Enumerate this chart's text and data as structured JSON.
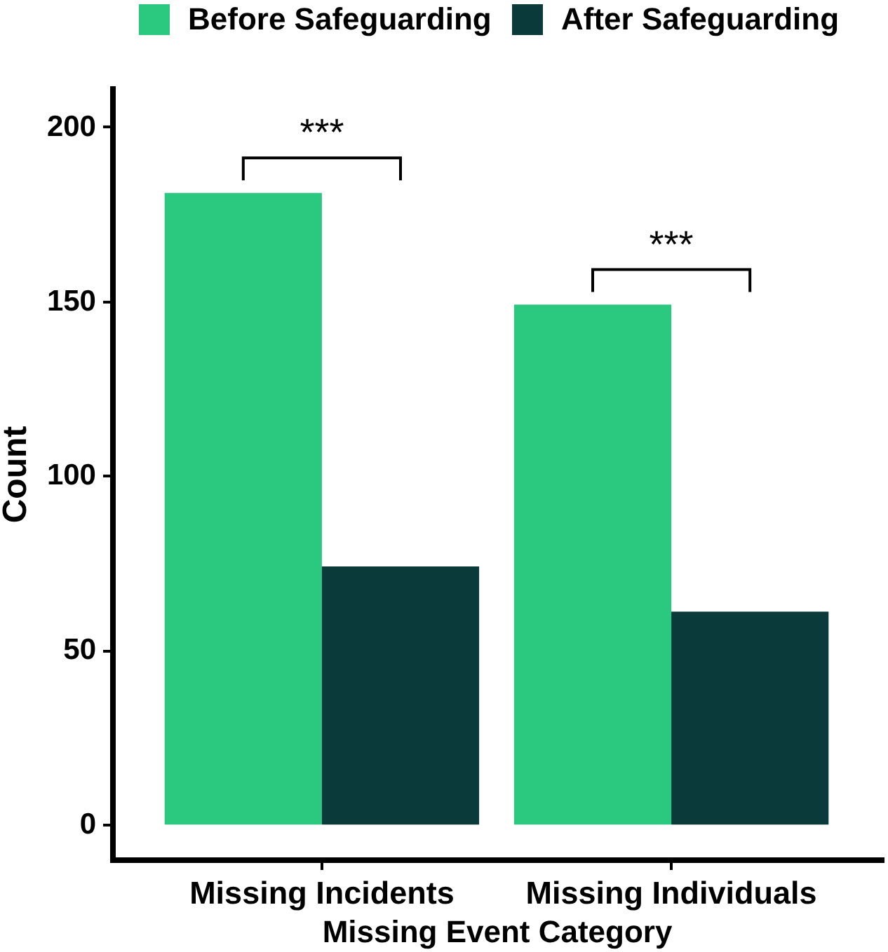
{
  "chart_data": {
    "type": "bar",
    "xlabel": "Missing Event Category",
    "ylabel": "Count",
    "categories": [
      "Missing Incidents",
      "Missing Individuals"
    ],
    "series": [
      {
        "name": "Before Safeguarding",
        "color": "#2bc880",
        "values": [
          181,
          149
        ]
      },
      {
        "name": "After Safeguarding",
        "color": "#0a3a3a",
        "values": [
          74,
          61
        ]
      }
    ],
    "ylim": [
      -10,
      211
    ],
    "yticks": [
      0,
      50,
      100,
      150,
      200
    ],
    "grid": false,
    "legend": "top",
    "annotations": [
      "***",
      "***"
    ]
  }
}
